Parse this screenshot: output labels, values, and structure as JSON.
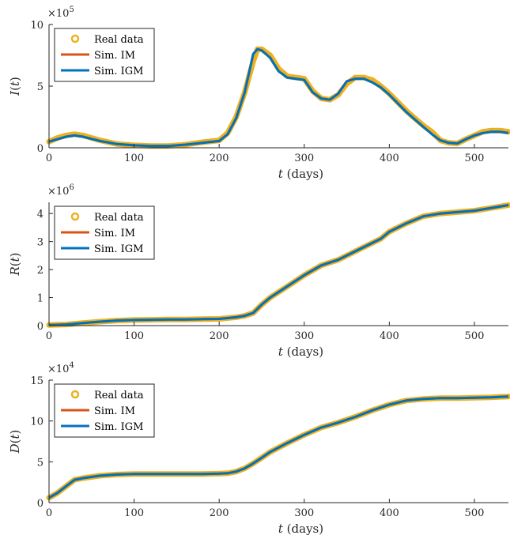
{
  "chart_data": [
    {
      "type": "line",
      "ylabel": "I(t)",
      "xlabel": "t (days)",
      "exponent": "5",
      "xlim": [
        0,
        540
      ],
      "ylim": [
        0,
        10
      ],
      "xticks": [
        0,
        100,
        200,
        300,
        400,
        500
      ],
      "yticks": [
        0,
        5,
        10
      ],
      "legend": [
        "Real data",
        "Sim. IM",
        "Sim. IGM"
      ],
      "legend_position": "top-left",
      "series": [
        {
          "name": "Real data",
          "x": [
            0,
            10,
            20,
            30,
            40,
            60,
            80,
            100,
            120,
            140,
            160,
            180,
            200,
            210,
            220,
            230,
            240,
            245,
            250,
            260,
            270,
            280,
            290,
            300,
            310,
            320,
            330,
            340,
            350,
            360,
            370,
            380,
            390,
            400,
            410,
            420,
            430,
            440,
            450,
            460,
            470,
            480,
            490,
            500,
            510,
            520,
            530,
            540
          ],
          "values": [
            0.5,
            0.8,
            1.0,
            1.1,
            1.0,
            0.6,
            0.3,
            0.2,
            0.15,
            0.15,
            0.25,
            0.45,
            0.6,
            1.2,
            2.5,
            4.5,
            7.0,
            8.0,
            8.0,
            7.5,
            6.4,
            5.8,
            5.7,
            5.6,
            4.6,
            4.0,
            3.9,
            4.3,
            5.2,
            5.7,
            5.7,
            5.5,
            5.0,
            4.4,
            3.7,
            3.0,
            2.4,
            1.8,
            1.3,
            0.6,
            0.4,
            0.35,
            0.7,
            1.0,
            1.3,
            1.4,
            1.4,
            1.3
          ]
        },
        {
          "name": "Sim. IM",
          "x": [
            0,
            10,
            20,
            30,
            40,
            60,
            80,
            100,
            120,
            140,
            160,
            180,
            200,
            210,
            220,
            230,
            240,
            245,
            250,
            260,
            270,
            280,
            290,
            300,
            310,
            320,
            330,
            340,
            350,
            360,
            370,
            380,
            390,
            400,
            410,
            420,
            430,
            440,
            450,
            460,
            470,
            480,
            490,
            500,
            510,
            520,
            530,
            540
          ],
          "values": [
            0.5,
            0.7,
            0.9,
            1.0,
            0.9,
            0.55,
            0.3,
            0.2,
            0.15,
            0.15,
            0.25,
            0.4,
            0.55,
            1.1,
            2.4,
            4.5,
            7.6,
            8.0,
            7.9,
            7.3,
            6.2,
            5.7,
            5.6,
            5.5,
            4.5,
            4.0,
            3.9,
            4.4,
            5.4,
            5.6,
            5.6,
            5.3,
            4.9,
            4.3,
            3.6,
            2.9,
            2.3,
            1.7,
            1.1,
            0.6,
            0.4,
            0.35,
            0.7,
            1.0,
            1.2,
            1.3,
            1.3,
            1.2
          ]
        },
        {
          "name": "Sim. IGM",
          "x": [
            0,
            10,
            20,
            30,
            40,
            60,
            80,
            100,
            120,
            140,
            160,
            180,
            200,
            210,
            220,
            230,
            240,
            245,
            250,
            260,
            270,
            280,
            290,
            300,
            310,
            320,
            330,
            340,
            350,
            360,
            370,
            380,
            390,
            400,
            410,
            420,
            430,
            440,
            450,
            460,
            470,
            480,
            490,
            500,
            510,
            520,
            530,
            540
          ],
          "values": [
            0.5,
            0.7,
            0.9,
            1.0,
            0.9,
            0.55,
            0.3,
            0.2,
            0.15,
            0.15,
            0.25,
            0.4,
            0.55,
            1.1,
            2.4,
            4.5,
            7.6,
            8.0,
            7.9,
            7.3,
            6.2,
            5.7,
            5.6,
            5.5,
            4.5,
            4.0,
            3.9,
            4.4,
            5.4,
            5.6,
            5.6,
            5.3,
            4.9,
            4.3,
            3.6,
            2.9,
            2.3,
            1.7,
            1.1,
            0.6,
            0.4,
            0.35,
            0.7,
            1.0,
            1.2,
            1.3,
            1.3,
            1.2
          ]
        }
      ]
    },
    {
      "type": "line",
      "ylabel": "R(t)",
      "xlabel": "t (days)",
      "exponent": "6",
      "xlim": [
        0,
        540
      ],
      "ylim": [
        0,
        4.4
      ],
      "xticks": [
        0,
        100,
        200,
        300,
        400,
        500
      ],
      "yticks": [
        0,
        1,
        2,
        3,
        4
      ],
      "legend": [
        "Real data",
        "Sim. IM",
        "Sim. IGM"
      ],
      "legend_position": "top-left",
      "series": [
        {
          "name": "Real data",
          "x": [
            0,
            20,
            40,
            60,
            80,
            100,
            120,
            140,
            160,
            180,
            200,
            220,
            230,
            240,
            250,
            260,
            280,
            300,
            320,
            340,
            360,
            380,
            390,
            400,
            420,
            440,
            460,
            480,
            500,
            520,
            540
          ],
          "values": [
            0.02,
            0.04,
            0.09,
            0.14,
            0.18,
            0.2,
            0.21,
            0.22,
            0.22,
            0.23,
            0.24,
            0.3,
            0.35,
            0.45,
            0.75,
            1.0,
            1.4,
            1.8,
            2.15,
            2.35,
            2.65,
            2.95,
            3.1,
            3.35,
            3.65,
            3.9,
            4.0,
            4.05,
            4.1,
            4.2,
            4.3
          ]
        },
        {
          "name": "Sim. IM",
          "x": [
            0,
            20,
            40,
            60,
            80,
            100,
            120,
            140,
            160,
            180,
            200,
            220,
            230,
            240,
            250,
            260,
            280,
            300,
            320,
            340,
            360,
            380,
            390,
            400,
            420,
            440,
            460,
            480,
            500,
            520,
            540
          ],
          "values": [
            0.02,
            0.04,
            0.09,
            0.14,
            0.18,
            0.2,
            0.21,
            0.22,
            0.22,
            0.23,
            0.24,
            0.3,
            0.35,
            0.45,
            0.75,
            1.0,
            1.4,
            1.8,
            2.15,
            2.35,
            2.65,
            2.95,
            3.1,
            3.35,
            3.65,
            3.9,
            4.0,
            4.05,
            4.1,
            4.2,
            4.3
          ]
        },
        {
          "name": "Sim. IGM",
          "x": [
            0,
            20,
            40,
            60,
            80,
            100,
            120,
            140,
            160,
            180,
            200,
            220,
            230,
            240,
            250,
            260,
            280,
            300,
            320,
            340,
            360,
            380,
            390,
            400,
            420,
            440,
            460,
            480,
            500,
            520,
            540
          ],
          "values": [
            0.02,
            0.04,
            0.09,
            0.14,
            0.18,
            0.2,
            0.21,
            0.22,
            0.22,
            0.23,
            0.24,
            0.3,
            0.35,
            0.45,
            0.75,
            1.0,
            1.4,
            1.8,
            2.15,
            2.35,
            2.65,
            2.95,
            3.1,
            3.35,
            3.65,
            3.9,
            4.0,
            4.05,
            4.1,
            4.2,
            4.3
          ]
        }
      ]
    },
    {
      "type": "line",
      "ylabel": "D(t)",
      "xlabel": "t (days)",
      "exponent": "4",
      "xlim": [
        0,
        540
      ],
      "ylim": [
        0,
        15
      ],
      "xticks": [
        0,
        100,
        200,
        300,
        400,
        500
      ],
      "yticks": [
        0,
        5,
        10,
        15
      ],
      "legend": [
        "Real data",
        "Sim. IM",
        "Sim. IGM"
      ],
      "legend_position": "top-left",
      "series": [
        {
          "name": "Real data",
          "x": [
            0,
            10,
            20,
            30,
            40,
            60,
            80,
            100,
            120,
            140,
            160,
            180,
            200,
            210,
            220,
            230,
            240,
            250,
            260,
            280,
            300,
            320,
            340,
            360,
            380,
            400,
            420,
            440,
            460,
            480,
            500,
            520,
            540
          ],
          "values": [
            0.6,
            1.2,
            2.0,
            2.8,
            3.0,
            3.3,
            3.45,
            3.5,
            3.5,
            3.5,
            3.5,
            3.5,
            3.55,
            3.6,
            3.8,
            4.2,
            4.8,
            5.5,
            6.2,
            7.3,
            8.3,
            9.2,
            9.8,
            10.5,
            11.3,
            12.0,
            12.5,
            12.7,
            12.8,
            12.8,
            12.85,
            12.9,
            13.0
          ]
        },
        {
          "name": "Sim. IM",
          "x": [
            0,
            10,
            20,
            30,
            40,
            60,
            80,
            100,
            120,
            140,
            160,
            180,
            200,
            210,
            220,
            230,
            240,
            250,
            260,
            280,
            300,
            320,
            340,
            360,
            380,
            400,
            420,
            440,
            460,
            480,
            500,
            520,
            540
          ],
          "values": [
            0.6,
            1.2,
            2.0,
            2.8,
            3.0,
            3.3,
            3.45,
            3.5,
            3.5,
            3.5,
            3.5,
            3.5,
            3.55,
            3.6,
            3.8,
            4.2,
            4.8,
            5.5,
            6.2,
            7.3,
            8.3,
            9.2,
            9.8,
            10.5,
            11.3,
            12.0,
            12.5,
            12.7,
            12.8,
            12.8,
            12.85,
            12.9,
            13.0
          ]
        },
        {
          "name": "Sim. IGM",
          "x": [
            0,
            10,
            20,
            30,
            40,
            60,
            80,
            100,
            120,
            140,
            160,
            180,
            200,
            210,
            220,
            230,
            240,
            250,
            260,
            280,
            300,
            320,
            340,
            360,
            380,
            400,
            420,
            440,
            460,
            480,
            500,
            520,
            540
          ],
          "values": [
            0.6,
            1.2,
            2.0,
            2.8,
            3.0,
            3.3,
            3.45,
            3.5,
            3.5,
            3.5,
            3.5,
            3.5,
            3.55,
            3.6,
            3.8,
            4.2,
            4.8,
            5.5,
            6.2,
            7.3,
            8.3,
            9.2,
            9.8,
            10.5,
            11.3,
            12.0,
            12.5,
            12.7,
            12.8,
            12.8,
            12.85,
            12.9,
            13.0
          ]
        }
      ]
    }
  ],
  "colors": {
    "real_data": "#EDB120",
    "sim_im": "#D95319",
    "sim_igm": "#0072BD",
    "axis": "#262626"
  }
}
